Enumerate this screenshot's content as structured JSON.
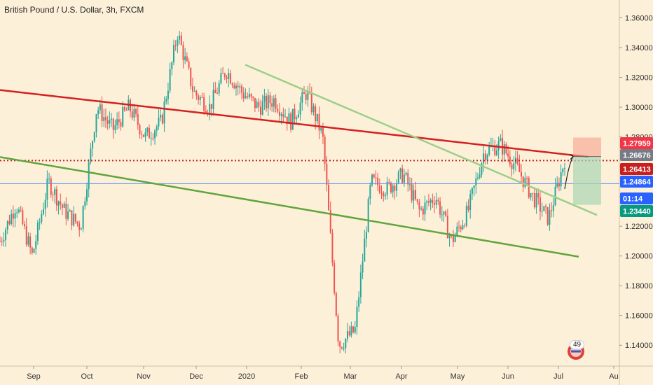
{
  "header": {
    "title": "British Pound / U.S. Dollar, 3h, FXCM"
  },
  "chart_data": {
    "type": "candlestick",
    "symbol": "British Pound / U.S. Dollar",
    "interval": "3h",
    "source": "FXCM",
    "ylim": [
      1.126,
      1.372
    ],
    "y_ticks": [
      "1.14000",
      "1.16000",
      "1.18000",
      "1.20000",
      "1.22000",
      "1.24000",
      "1.26000",
      "1.28000",
      "1.30000",
      "1.32000",
      "1.34000",
      "1.36000"
    ],
    "x_ticks": [
      "Sep",
      "Oct",
      "Nov",
      "Dec",
      "2020",
      "Feb",
      "Mar",
      "Apr",
      "May",
      "Jun",
      "Jul",
      "Au"
    ],
    "price_path": [
      1.21,
      1.235,
      1.2,
      1.25,
      1.23,
      1.22,
      1.3,
      1.285,
      1.3,
      1.28,
      1.29,
      1.35,
      1.31,
      1.3,
      1.325,
      1.31,
      1.3,
      1.305,
      1.29,
      1.31,
      1.28,
      1.14,
      1.15,
      1.25,
      1.245,
      1.255,
      1.23,
      1.24,
      1.21,
      1.23,
      1.27,
      1.275,
      1.26,
      1.24,
      1.225,
      1.265
    ],
    "price_tags": [
      {
        "label": "1.27959",
        "color": "#f23645"
      },
      {
        "label": "1.26676",
        "color": "#787b86"
      },
      {
        "label": "1.26413",
        "color": "#c81e1e"
      },
      {
        "label": "1.24864",
        "color": "#2962ff"
      },
      {
        "label": "01:14",
        "color": "#2962ff"
      },
      {
        "label": "1.23440",
        "color": "#089981"
      }
    ],
    "levels": {
      "dotted_red": 1.2641,
      "current": 1.2486
    },
    "position": {
      "target": 1.2796,
      "entry": 1.2668,
      "stop": 1.2344
    },
    "colors": {
      "up": "#26a69a",
      "down": "#ef5350",
      "red_line": "#d32020",
      "green_line": "#5fa53d",
      "light_green_line": "#9ccf8a"
    }
  },
  "widgets": {
    "badge_count": "49"
  }
}
